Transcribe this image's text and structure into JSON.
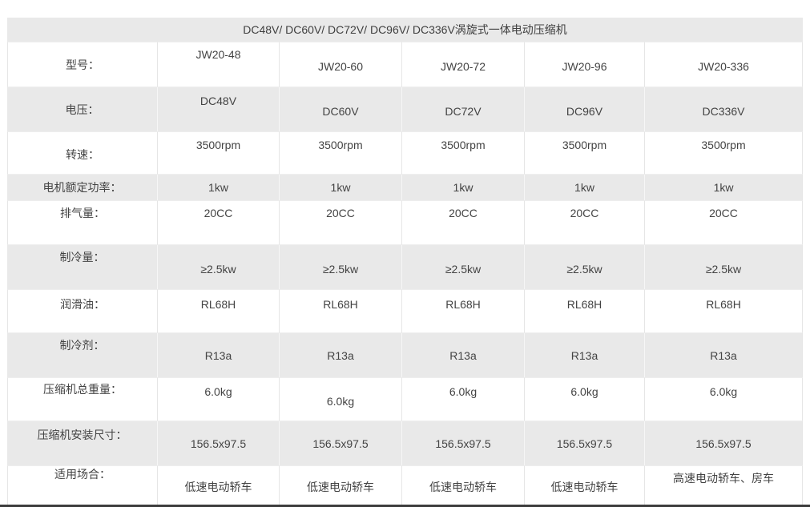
{
  "page": {
    "background_color": "#ffffff",
    "row_gray_color": "#e9e9e9",
    "text_color": "#434343",
    "footer_bar_color": "#3c3c3c"
  },
  "table": {
    "title": "DC48V/ DC60V/ DC72V/ DC96V/ DC336V涡旋式一体电动压缩机",
    "rows": [
      {
        "id": "model",
        "label": "型号：",
        "values": [
          "JW20-48",
          "JW20-60",
          "JW20-72",
          "JW20-96",
          "JW20-336"
        ]
      },
      {
        "id": "voltage",
        "label": "电压：",
        "values": [
          "DC48V",
          "DC60V",
          "DC72V",
          "DC96V",
          "DC336V"
        ]
      },
      {
        "id": "speed",
        "label": "转速：",
        "values": [
          "3500rpm",
          "3500rpm",
          "3500rpm",
          "3500rpm",
          "3500rpm"
        ]
      },
      {
        "id": "power",
        "label": "电机额定功率：",
        "values": [
          "1kw",
          "1kw",
          "1kw",
          "1kw",
          "1kw"
        ]
      },
      {
        "id": "displacement",
        "label": "排气量：",
        "values": [
          "20CC",
          "20CC",
          "20CC",
          "20CC",
          "20CC"
        ]
      },
      {
        "id": "cooling",
        "label": "制冷量：",
        "values": [
          "≥2.5kw",
          "≥2.5kw",
          "≥2.5kw",
          "≥2.5kw",
          "≥2.5kw"
        ]
      },
      {
        "id": "oil",
        "label": "润滑油：",
        "values": [
          "RL68H",
          "RL68H",
          "RL68H",
          "RL68H",
          "RL68H"
        ]
      },
      {
        "id": "refrigerant",
        "label": "制冷剂：",
        "values": [
          "R13a",
          "R13a",
          "R13a",
          "R13a",
          "R13a"
        ]
      },
      {
        "id": "weight",
        "label": "压缩机总重量：",
        "values": [
          "6.0kg",
          "6.0kg",
          "6.0kg",
          "6.0kg",
          "6.0kg"
        ]
      },
      {
        "id": "size",
        "label": "压缩机安装尺寸：",
        "values": [
          "156.5x97.5",
          "156.5x97.5",
          "156.5x97.5",
          "156.5x97.5",
          "156.5x97.5"
        ]
      },
      {
        "id": "application",
        "label": "适用场合：",
        "values": [
          "低速电动轿车",
          "低速电动轿车",
          "低速电动轿车",
          "低速电动轿车",
          "高速电动轿车、房车"
        ]
      }
    ]
  }
}
